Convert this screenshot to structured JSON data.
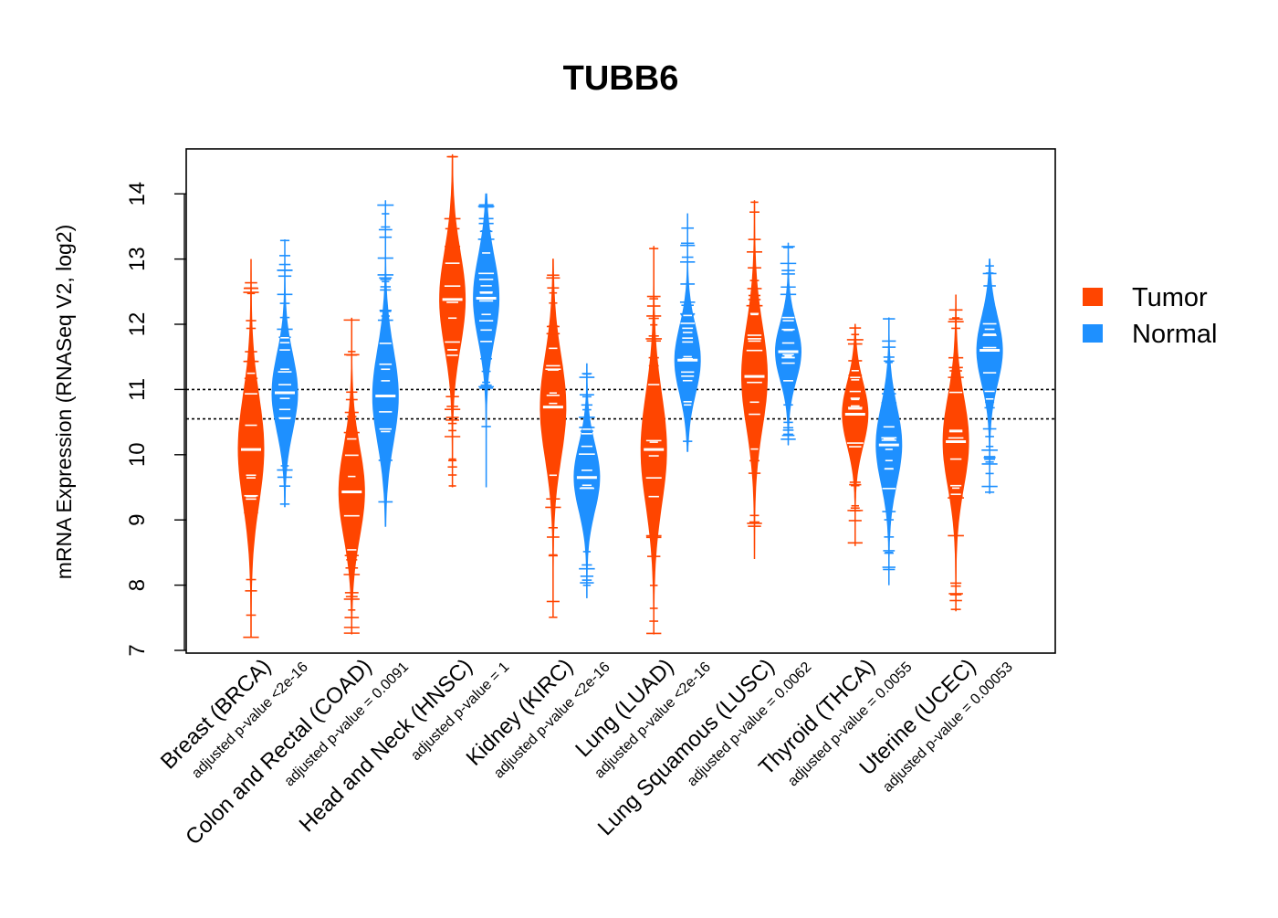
{
  "chart_data": {
    "type": "violin",
    "title": "TUBB6",
    "ylabel": "mRNA Expression (RNASeq V2, log2)",
    "xlabel": "",
    "ylim": [
      7,
      14.6
    ],
    "y_ticks": [
      "7",
      "8",
      "9",
      "10",
      "11",
      "12",
      "13",
      "14"
    ],
    "reference_lines": [
      10.55,
      11.0
    ],
    "legend": {
      "position": "right",
      "entries": [
        {
          "label": "Tumor",
          "color": "#FF4500"
        },
        {
          "label": "Normal",
          "color": "#1E90FF"
        }
      ]
    },
    "categories": [
      {
        "label": "Breast (BRCA)",
        "pvalue": "adjusted p-value <2e-16",
        "tumor": {
          "min": 7.2,
          "max": 13.0,
          "median": 10.08
        },
        "normal": {
          "min": 9.2,
          "max": 13.3,
          "median": 10.95
        }
      },
      {
        "label": "Colon and Rectal (COAD)",
        "pvalue": "adjusted p-value = 0.0091",
        "tumor": {
          "min": 7.25,
          "max": 12.1,
          "median": 9.43
        },
        "normal": {
          "min": 8.9,
          "max": 13.9,
          "median": 10.9
        }
      },
      {
        "label": "Head and Neck (HNSC)",
        "pvalue": "adjusted p-value = 1",
        "tumor": {
          "min": 9.5,
          "max": 14.6,
          "median": 12.38
        },
        "normal": {
          "min": 9.5,
          "max": 14.0,
          "median": 12.4
        }
      },
      {
        "label": "Kidney (KIRC)",
        "pvalue": "adjusted p-value <2e-16",
        "tumor": {
          "min": 7.5,
          "max": 13.0,
          "median": 10.73
        },
        "normal": {
          "min": 7.8,
          "max": 11.4,
          "median": 9.65
        }
      },
      {
        "label": "Lung (LUAD)",
        "pvalue": "adjusted p-value <2e-16",
        "tumor": {
          "min": 7.25,
          "max": 13.2,
          "median": 10.08
        },
        "normal": {
          "min": 10.05,
          "max": 13.7,
          "median": 11.45
        }
      },
      {
        "label": "Lung Squamous (LUSC)",
        "pvalue": "adjusted p-value = 0.0062",
        "tumor": {
          "min": 8.4,
          "max": 13.9,
          "median": 11.2
        },
        "normal": {
          "min": 10.15,
          "max": 13.25,
          "median": 11.58
        }
      },
      {
        "label": "Thyroid (THCA)",
        "pvalue": "adjusted p-value = 0.0055",
        "tumor": {
          "min": 8.6,
          "max": 12.0,
          "median": 10.62
        },
        "normal": {
          "min": 8.0,
          "max": 12.1,
          "median": 10.15
        }
      },
      {
        "label": "Uterine (UCEC)",
        "pvalue": "adjusted p-value = 0.00053",
        "tumor": {
          "min": 7.6,
          "max": 12.45,
          "median": 10.2
        },
        "normal": {
          "min": 9.4,
          "max": 13.0,
          "median": 11.6
        }
      }
    ]
  }
}
